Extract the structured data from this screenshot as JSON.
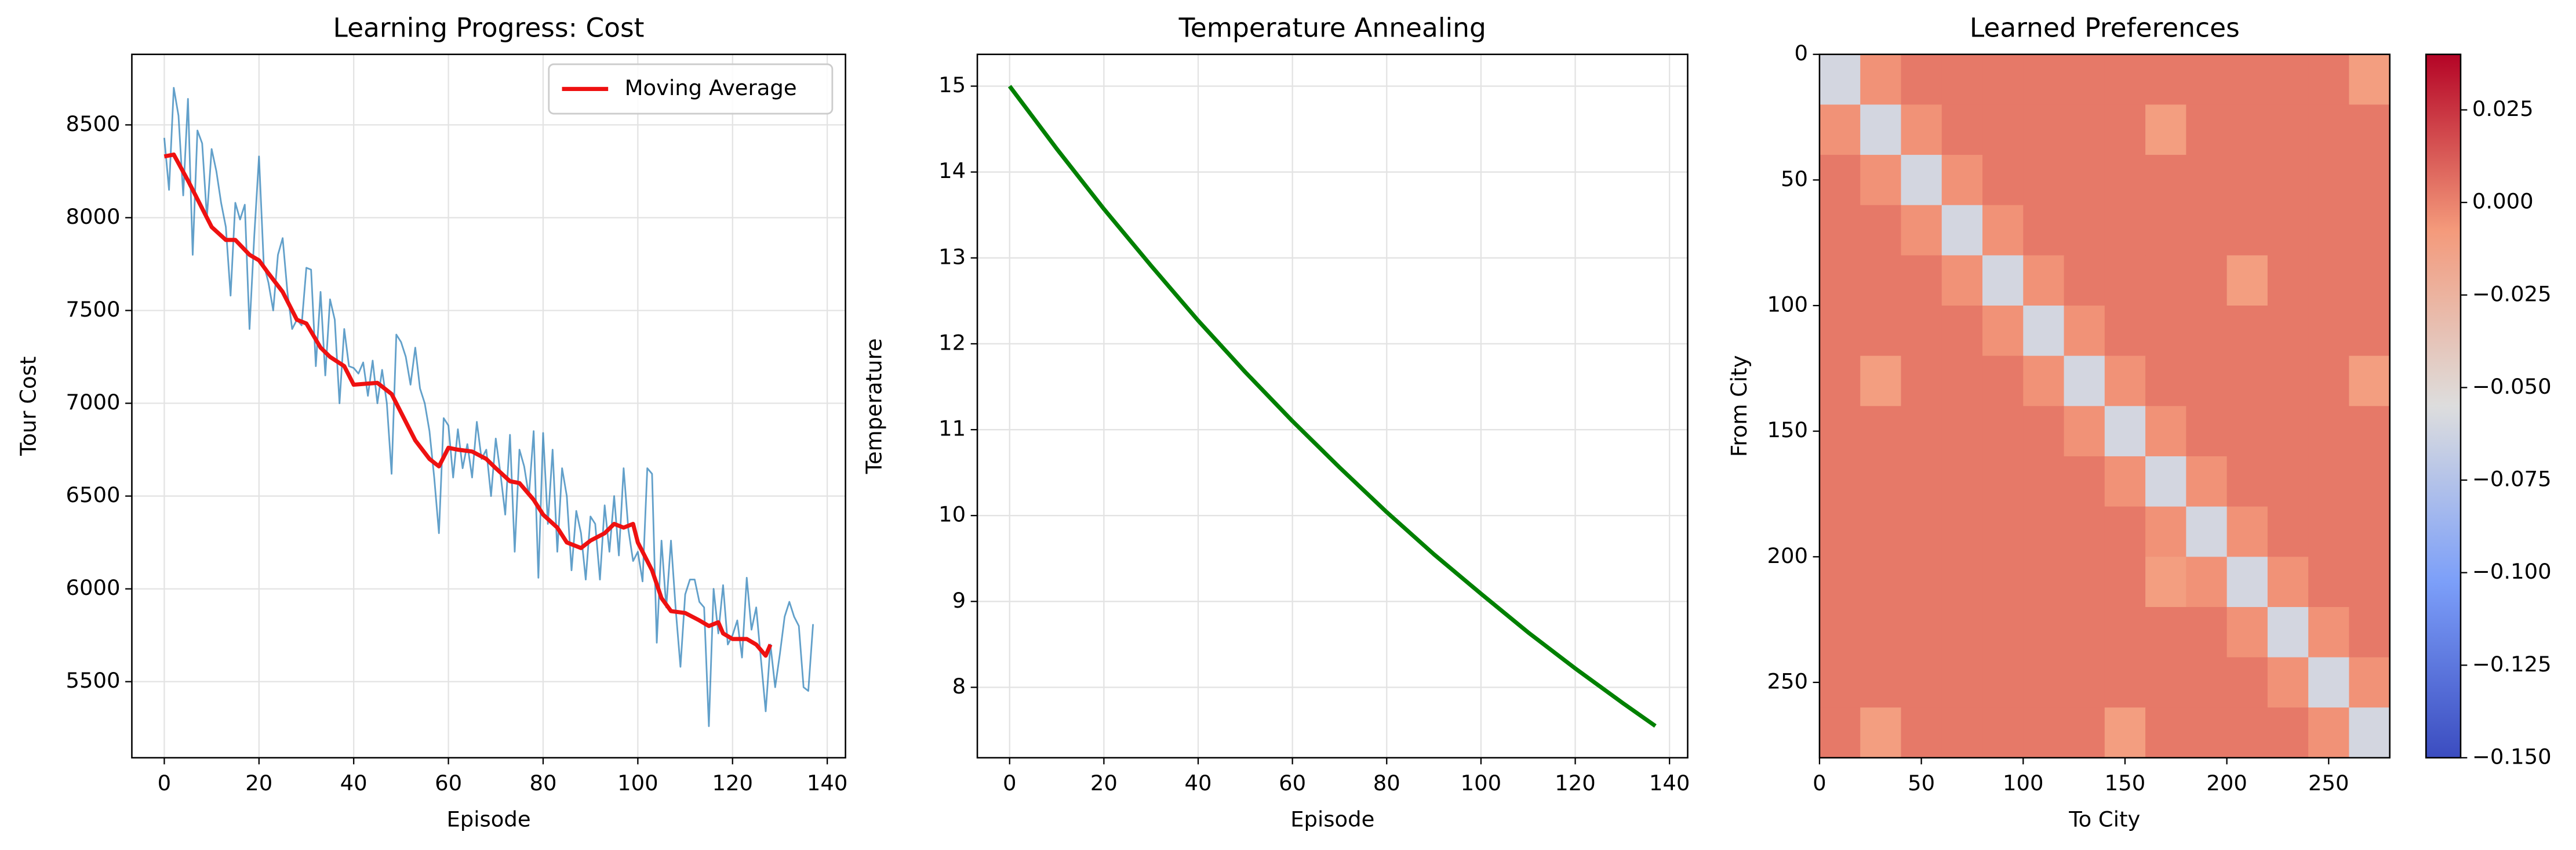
{
  "chart_data": [
    {
      "type": "line",
      "title": "Learning Progress: Cost",
      "xlabel": "Episode",
      "ylabel": "Tour Cost",
      "xlim": [
        -6.85,
        143.85
      ],
      "xticks": [
        0,
        20,
        40,
        60,
        80,
        100,
        120,
        140
      ],
      "ylim": [
        5090,
        8880
      ],
      "yticks": [
        5500,
        6000,
        6500,
        7000,
        7500,
        8000,
        8500
      ],
      "grid": true,
      "legend": "upper right",
      "series": [
        {
          "color": "#1f77b4",
          "alpha": 0.7,
          "width": 1,
          "x": [
            0,
            1,
            2,
            3,
            4,
            5,
            6,
            7,
            8,
            9,
            10,
            11,
            12,
            13,
            14,
            15,
            16,
            17,
            18,
            19,
            20,
            21,
            22,
            23,
            24,
            25,
            26,
            27,
            28,
            29,
            30,
            31,
            32,
            33,
            34,
            35,
            36,
            37,
            38,
            39,
            40,
            41,
            42,
            43,
            44,
            45,
            46,
            47,
            48,
            49,
            50,
            51,
            52,
            53,
            54,
            55,
            56,
            57,
            58,
            59,
            60,
            61,
            62,
            63,
            64,
            65,
            66,
            67,
            68,
            69,
            70,
            71,
            72,
            73,
            74,
            75,
            76,
            77,
            78,
            79,
            80,
            81,
            82,
            83,
            84,
            85,
            86,
            87,
            88,
            89,
            90,
            91,
            92,
            93,
            94,
            95,
            96,
            97,
            98,
            99,
            100,
            101,
            102,
            103,
            104,
            105,
            106,
            107,
            108,
            109,
            110,
            111,
            112,
            113,
            114,
            115,
            116,
            117,
            118,
            119,
            120,
            121,
            122,
            123,
            124,
            125,
            126,
            127,
            128,
            129,
            130,
            131,
            132,
            133,
            134,
            135,
            136,
            137
          ],
          "values": [
            8430,
            8150,
            8700,
            8550,
            8120,
            8640,
            7800,
            8470,
            8400,
            8000,
            8370,
            8250,
            8080,
            7950,
            7580,
            8080,
            7990,
            8070,
            7400,
            7900,
            8330,
            7750,
            7650,
            7500,
            7800,
            7890,
            7600,
            7400,
            7450,
            7420,
            7730,
            7720,
            7200,
            7600,
            7150,
            7560,
            7450,
            7000,
            7400,
            7200,
            7190,
            7160,
            7220,
            7040,
            7230,
            7000,
            7180,
            7000,
            6620,
            7370,
            7330,
            7250,
            7100,
            7300,
            7080,
            7000,
            6850,
            6600,
            6300,
            6920,
            6880,
            6600,
            6860,
            6650,
            6780,
            6600,
            6900,
            6700,
            6750,
            6500,
            6810,
            6620,
            6400,
            6830,
            6200,
            6750,
            6660,
            6500,
            6850,
            6060,
            6840,
            6350,
            6750,
            6200,
            6650,
            6500,
            6100,
            6420,
            6300,
            6050,
            6390,
            6350,
            6050,
            6450,
            6200,
            6500,
            6180,
            6650,
            6320,
            6150,
            6200,
            6040,
            6650,
            6620,
            5710,
            6260,
            5900,
            6260,
            5890,
            5580,
            5970,
            6050,
            6050,
            5930,
            5900,
            5260,
            6000,
            5760,
            6020,
            5700,
            5750,
            5830,
            5630,
            6060,
            5780,
            5900,
            5620,
            5340,
            5700,
            5470,
            5650,
            5850,
            5930,
            5850,
            5800,
            5470,
            5450,
            5810
          ]
        },
        {
          "name": "Moving Average",
          "color": "#ee1111",
          "alpha": 1,
          "width": 2.5,
          "x": [
            0,
            2,
            5,
            7,
            10,
            13,
            15,
            18,
            20,
            22,
            25,
            28,
            30,
            33,
            35,
            38,
            40,
            45,
            48,
            50,
            53,
            56,
            58,
            60,
            62,
            65,
            68,
            70,
            73,
            75,
            78,
            80,
            83,
            85,
            88,
            90,
            93,
            95,
            97,
            99,
            100,
            103,
            105,
            107,
            110,
            113,
            115,
            117,
            118,
            120,
            123,
            125,
            127,
            128
          ],
          "values": [
            8330,
            8340,
            8200,
            8100,
            7950,
            7880,
            7880,
            7800,
            7770,
            7700,
            7600,
            7450,
            7430,
            7300,
            7250,
            7200,
            7100,
            7110,
            7050,
            6950,
            6800,
            6700,
            6660,
            6760,
            6750,
            6740,
            6700,
            6650,
            6580,
            6570,
            6480,
            6400,
            6330,
            6250,
            6220,
            6260,
            6300,
            6350,
            6330,
            6350,
            6250,
            6100,
            5950,
            5880,
            5870,
            5830,
            5800,
            5820,
            5760,
            5730,
            5730,
            5700,
            5640,
            5700
          ]
        }
      ]
    },
    {
      "type": "line",
      "title": "Temperature Annealing",
      "xlabel": "Episode",
      "ylabel": "Temperature",
      "xlim": [
        -6.85,
        143.85
      ],
      "xticks": [
        0,
        20,
        40,
        60,
        80,
        100,
        120,
        140
      ],
      "ylim": [
        7.18,
        15.37
      ],
      "yticks": [
        8,
        9,
        10,
        11,
        12,
        13,
        14,
        15
      ],
      "grid": true,
      "series": [
        {
          "color": "#008000",
          "alpha": 1,
          "width": 2.5,
          "x": [
            0,
            10,
            20,
            30,
            40,
            50,
            60,
            70,
            80,
            90,
            100,
            110,
            120,
            130,
            137
          ],
          "values": [
            15,
            14.27,
            13.57,
            12.91,
            12.27,
            11.67,
            11.1,
            10.56,
            10.04,
            9.55,
            9.09,
            8.64,
            8.22,
            7.82,
            7.55
          ]
        }
      ]
    },
    {
      "type": "heatmap",
      "title": "Learned Preferences",
      "xlabel": "To City",
      "ylabel": "From City",
      "xlim": [
        0,
        280
      ],
      "xticks": [
        0,
        50,
        100,
        150,
        200,
        250
      ],
      "ylim": [
        280,
        0
      ],
      "yticks": [
        0,
        50,
        100,
        150,
        200,
        250
      ],
      "colormap": "coolwarm",
      "clim": [
        -0.15,
        0.04
      ],
      "cticks": [
        {
          "value": 0.025,
          "label": "0.025"
        },
        {
          "value": 0,
          "label": "0.000"
        },
        {
          "value": -0.025,
          "label": "−0.025"
        },
        {
          "value": -0.05,
          "label": "−0.050"
        },
        {
          "value": -0.075,
          "label": "−0.075"
        },
        {
          "value": -0.1,
          "label": "−0.100"
        },
        {
          "value": -0.125,
          "label": "−0.125"
        },
        {
          "value": -0.15,
          "label": "−0.150"
        }
      ],
      "z": [
        [
          -0.06,
          -0.005,
          0.003,
          0.003,
          0.003,
          0.003,
          0.003,
          0.003,
          0.003,
          0.003,
          0.003,
          0.003,
          0.003,
          -0.01
        ],
        [
          -0.005,
          -0.06,
          -0.005,
          0.003,
          0.003,
          0.003,
          0.003,
          0.003,
          -0.01,
          0.003,
          0.003,
          0.003,
          0.003,
          0.003
        ],
        [
          0.003,
          -0.005,
          -0.06,
          -0.005,
          0.003,
          0.003,
          0.003,
          0.003,
          0.003,
          0.003,
          0.003,
          0.003,
          0.003,
          0.003
        ],
        [
          0.003,
          0.003,
          -0.005,
          -0.06,
          -0.005,
          0.003,
          0.003,
          0.003,
          0.003,
          0.003,
          0.003,
          0.003,
          0.003,
          0.003
        ],
        [
          0.003,
          0.003,
          0.003,
          -0.005,
          -0.06,
          -0.005,
          0.003,
          0.003,
          0.003,
          0.003,
          -0.01,
          0.003,
          0.003,
          0.003
        ],
        [
          0.003,
          0.003,
          0.003,
          0.003,
          -0.005,
          -0.06,
          -0.005,
          0.003,
          0.003,
          0.003,
          0.003,
          0.003,
          0.003,
          0.003
        ],
        [
          0.003,
          -0.01,
          0.003,
          0.003,
          0.003,
          -0.005,
          -0.06,
          -0.005,
          0.003,
          0.003,
          0.003,
          0.003,
          0.003,
          -0.01
        ],
        [
          0.003,
          0.003,
          0.003,
          0.003,
          0.003,
          0.003,
          -0.005,
          -0.06,
          -0.005,
          0.003,
          0.003,
          0.003,
          0.003,
          0.003
        ],
        [
          0.003,
          0.003,
          0.003,
          0.003,
          0.003,
          0.003,
          0.003,
          -0.005,
          -0.06,
          -0.005,
          0.003,
          0.003,
          0.003,
          0.003
        ],
        [
          0.003,
          0.003,
          0.003,
          0.003,
          0.003,
          0.003,
          0.003,
          0.003,
          -0.005,
          -0.06,
          -0.005,
          0.003,
          0.003,
          0.003
        ],
        [
          0.003,
          0.003,
          0.003,
          0.003,
          0.003,
          0.003,
          0.003,
          0.003,
          -0.01,
          -0.005,
          -0.06,
          -0.005,
          0.003,
          0.003
        ],
        [
          0.003,
          0.003,
          0.003,
          0.003,
          0.003,
          0.003,
          0.003,
          0.003,
          0.003,
          0.003,
          -0.005,
          -0.06,
          -0.005,
          0.003
        ],
        [
          0.003,
          0.003,
          0.003,
          0.003,
          0.003,
          0.003,
          0.003,
          0.003,
          0.003,
          0.003,
          0.003,
          -0.005,
          -0.06,
          -0.005
        ],
        [
          0.003,
          -0.01,
          0.003,
          0.003,
          0.003,
          0.003,
          0.003,
          -0.01,
          0.003,
          0.003,
          0.003,
          0.003,
          -0.005,
          -0.06
        ]
      ]
    }
  ]
}
